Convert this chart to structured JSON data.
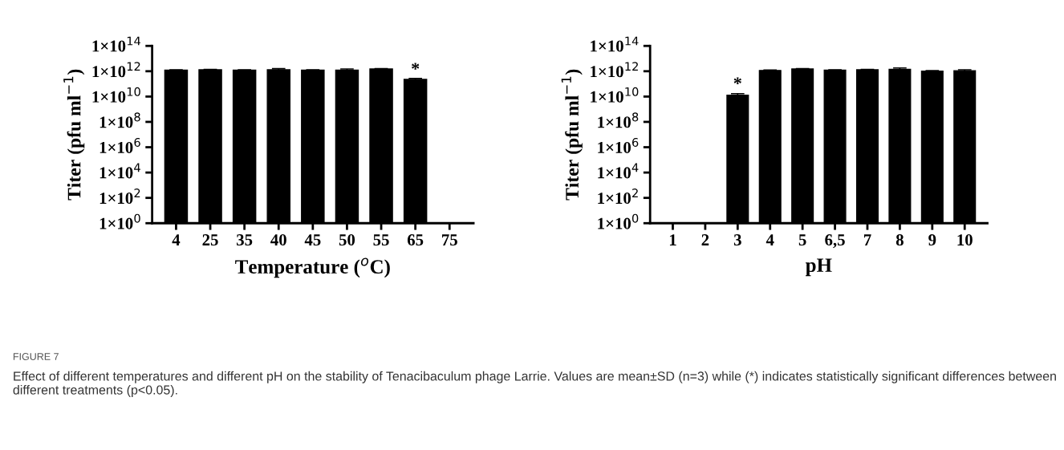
{
  "chart_data": [
    {
      "type": "bar",
      "xlabel": "Temperature ($^{o}$C)",
      "ylabel": "Titer (pfu ml$^{−1}$)",
      "categories": [
        "4",
        "25",
        "35",
        "40",
        "45",
        "50",
        "55",
        "65",
        "75"
      ],
      "values": [
        1200000000000.0,
        1300000000000.0,
        1200000000000.0,
        1300000000000.0,
        1200000000000.0,
        1200000000000.0,
        1500000000000.0,
        230000000000.0,
        null
      ],
      "errors": [
        100000000000.0,
        100000000000.0,
        100000000000.0,
        300000000000.0,
        100000000000.0,
        300000000000.0,
        100000000000.0,
        40000000000.0,
        null
      ],
      "color": "#000000",
      "log": "y",
      "ylim": [
        1,
        100000000000000.0
      ],
      "yticks": [
        {
          "value": 1,
          "label": "1×10$^{0}$"
        },
        {
          "value": 100.0,
          "label": "1×10$^{2}$"
        },
        {
          "value": 10000.0,
          "label": "1×10$^{4}$"
        },
        {
          "value": 1000000.0,
          "label": "1×10$^{6}$"
        },
        {
          "value": 100000000.0,
          "label": "1×10$^{8}$"
        },
        {
          "value": 10000000000.0,
          "label": "1×10$^{10}$"
        },
        {
          "value": 1000000000000.0,
          "label": "1×10$^{12}$"
        },
        {
          "value": 100000000000000.0,
          "label": "1×10$^{14}$"
        }
      ],
      "grid": false,
      "legend": false,
      "annotations": [
        {
          "text": "*",
          "x": "65",
          "y": 270000000000.0
        },
        "FIGURE 7",
        "Effect of different temperatures and different pH on the stability of Tenacibaculum phage Larrie. Values are mean±SD (n=3) while (*) indicates statistically significant differences between different treatments (p<0.05)."
      ]
    },
    {
      "type": "bar",
      "xlabel": "pH",
      "ylabel": "Titer (pfu ml$^{−1}$)",
      "categories": [
        "1",
        "2",
        "3",
        "4",
        "5",
        "6,5",
        "7",
        "8",
        "9",
        "10"
      ],
      "values": [
        null,
        null,
        13000000000.0,
        1150000000000.0,
        1500000000000.0,
        1200000000000.0,
        1300000000000.0,
        1400000000000.0,
        1000000000000.0,
        1100000000000.0
      ],
      "errors": [
        null,
        null,
        4000000000.0,
        100000000000.0,
        100000000000.0,
        100000000000.0,
        100000000000.0,
        400000000000.0,
        100000000000.0,
        200000000000.0
      ],
      "color": "#000000",
      "log": "y",
      "ylim": [
        1,
        100000000000000.0
      ],
      "yticks": [
        {
          "value": 1,
          "label": "1×10$^{0}$"
        },
        {
          "value": 100.0,
          "label": "1×10$^{2}$"
        },
        {
          "value": 10000.0,
          "label": "1×10$^{4}$"
        },
        {
          "value": 1000000.0,
          "label": "1×10$^{6}$"
        },
        {
          "value": 100000000.0,
          "label": "1×10$^{8}$"
        },
        {
          "value": 10000000000.0,
          "label": "1×10$^{10}$"
        },
        {
          "value": 1000000000000.0,
          "label": "1×10$^{12}$"
        },
        {
          "value": 100000000000000.0,
          "label": "1×10$^{14}$"
        }
      ],
      "grid": false,
      "legend": false,
      "annotations": [
        {
          "text": "*",
          "x": "3",
          "y": 19000000000.0
        }
      ]
    }
  ]
}
